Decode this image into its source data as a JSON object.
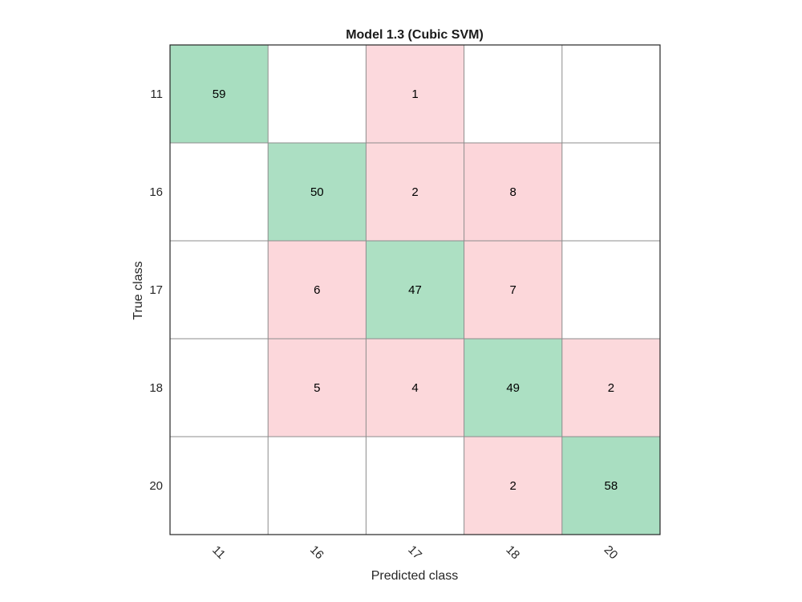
{
  "chart_data": {
    "type": "heatmap",
    "title": "Model 1.3 (Cubic SVM)",
    "xlabel": "Predicted class",
    "ylabel": "True class",
    "x_categories": [
      "11",
      "16",
      "17",
      "18",
      "20"
    ],
    "y_categories": [
      "11",
      "16",
      "17",
      "18",
      "20"
    ],
    "matrix": [
      [
        59,
        0,
        1,
        0,
        0
      ],
      [
        0,
        50,
        2,
        8,
        0
      ],
      [
        0,
        6,
        47,
        7,
        0
      ],
      [
        0,
        5,
        4,
        49,
        2
      ],
      [
        0,
        0,
        0,
        2,
        58
      ]
    ],
    "colors": {
      "correct": "#a8dec0",
      "incorrect": "#fcd3d7",
      "empty": "#ffffff",
      "grid": "#8c8c8c",
      "border": "#262626"
    },
    "grid": true,
    "legend": "none"
  }
}
